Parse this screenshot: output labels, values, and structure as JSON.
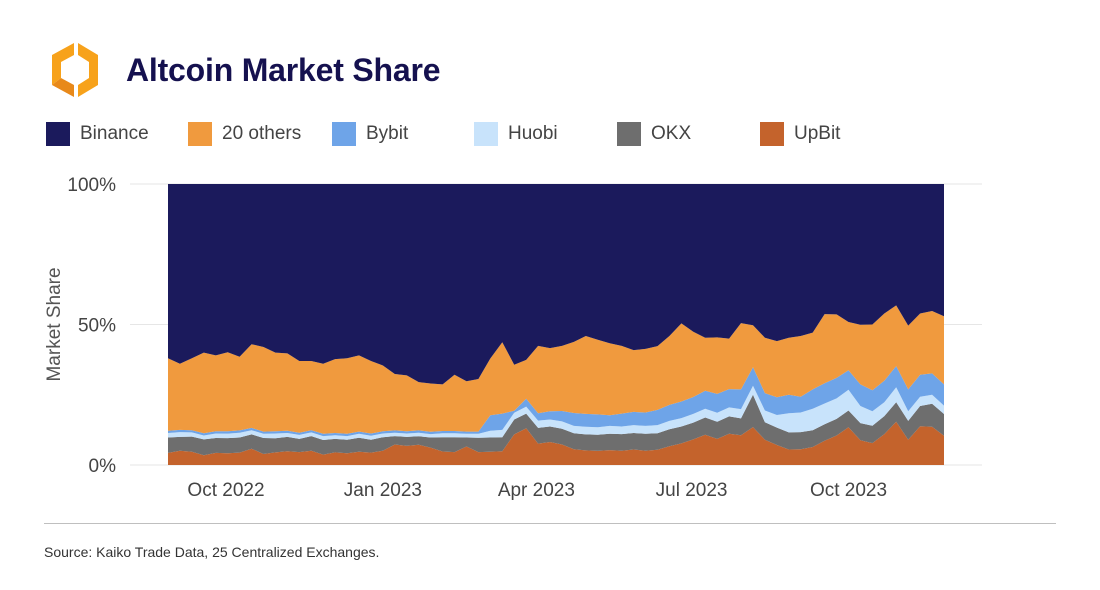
{
  "header": {
    "title": "Altcoin Market Share",
    "logo_colors": [
      "#f7a21b",
      "#e8891a"
    ]
  },
  "footer": {
    "source": "Source: Kaiko Trade Data, 25 Centralized Exchanges."
  },
  "chart_data": {
    "type": "area",
    "stacked": true,
    "normalized": true,
    "title": "Altcoin Market Share",
    "ylabel": "Market Share",
    "xlabel": "",
    "ylim": [
      0,
      100
    ],
    "y_ticks": [
      {
        "value": 0,
        "label": "0%"
      },
      {
        "value": 50,
        "label": "50%"
      },
      {
        "value": 100,
        "label": "100%"
      }
    ],
    "x_ticks": [
      {
        "value": "2022-10-01",
        "label": "Oct 2022"
      },
      {
        "value": "2023-01-01",
        "label": "Jan 2023"
      },
      {
        "value": "2023-04-01",
        "label": "Apr 2023"
      },
      {
        "value": "2023-07-01",
        "label": "Jul 2023"
      },
      {
        "value": "2023-10-01",
        "label": "Oct 2023"
      }
    ],
    "grid": "horizontal",
    "legend_position": "top",
    "x": [
      "2022-08-28",
      "2022-09-04",
      "2022-09-11",
      "2022-09-18",
      "2022-09-25",
      "2022-10-02",
      "2022-10-09",
      "2022-10-16",
      "2022-10-23",
      "2022-10-30",
      "2022-11-06",
      "2022-11-13",
      "2022-11-20",
      "2022-11-27",
      "2022-12-04",
      "2022-12-11",
      "2022-12-18",
      "2022-12-25",
      "2023-01-01",
      "2023-01-08",
      "2023-01-15",
      "2023-01-22",
      "2023-01-29",
      "2023-02-05",
      "2023-02-12",
      "2023-02-19",
      "2023-02-26",
      "2023-03-05",
      "2023-03-12",
      "2023-03-19",
      "2023-03-26",
      "2023-04-02",
      "2023-04-09",
      "2023-04-16",
      "2023-04-23",
      "2023-04-30",
      "2023-05-07",
      "2023-05-14",
      "2023-05-21",
      "2023-05-28",
      "2023-06-04",
      "2023-06-11",
      "2023-06-18",
      "2023-06-25",
      "2023-07-02",
      "2023-07-09",
      "2023-07-16",
      "2023-07-23",
      "2023-07-30",
      "2023-08-06",
      "2023-08-13",
      "2023-08-20",
      "2023-08-27",
      "2023-09-03",
      "2023-09-10",
      "2023-09-17",
      "2023-09-24",
      "2023-10-01",
      "2023-10-08",
      "2023-10-15",
      "2023-10-22",
      "2023-10-29",
      "2023-11-05",
      "2023-11-12",
      "2023-11-19",
      "2023-11-26"
    ],
    "series": [
      {
        "name": "UpBit",
        "color": "#c4632c",
        "values": [
          4.3,
          5.1,
          4.7,
          3.5,
          4.3,
          4.2,
          4.4,
          5.8,
          3.9,
          4.5,
          4.9,
          4.6,
          5.1,
          3.7,
          4.5,
          4.2,
          4.7,
          4.4,
          5.1,
          7.3,
          6.8,
          7.2,
          6.2,
          4.8,
          4.6,
          6.6,
          4.6,
          4.7,
          4.9,
          10.9,
          13.1,
          7.6,
          8.2,
          7.3,
          5.6,
          5.2,
          5.0,
          5.3,
          5.1,
          5.5,
          5.1,
          5.4,
          6.7,
          7.7,
          9.1,
          10.8,
          9.3,
          11.1,
          10.6,
          13.5,
          9.0,
          7.1,
          5.5,
          5.6,
          6.4,
          8.6,
          10.5,
          13.4,
          8.8,
          7.8,
          11.0,
          15.4,
          9.0,
          13.8,
          13.6,
          10.2
        ]
      },
      {
        "name": "OKX",
        "color": "#6e6e6e",
        "values": [
          5.5,
          4.9,
          5.4,
          5.6,
          5.3,
          5.4,
          5.4,
          5.1,
          5.7,
          5.0,
          5.1,
          4.7,
          5.2,
          5.2,
          4.8,
          4.8,
          5.0,
          4.6,
          4.8,
          3.0,
          3.2,
          3.0,
          3.6,
          5.1,
          5.3,
          3.2,
          5.1,
          5.1,
          5.0,
          5.3,
          5.2,
          5.6,
          5.5,
          5.6,
          5.7,
          5.7,
          5.8,
          5.8,
          5.9,
          5.9,
          6.0,
          5.9,
          6.0,
          6.0,
          6.0,
          6.1,
          6.1,
          6.2,
          6.0,
          11.5,
          6.2,
          6.2,
          6.1,
          6.1,
          6.0,
          5.9,
          5.9,
          6.0,
          6.1,
          6.2,
          6.4,
          6.9,
          6.7,
          7.2,
          8.2,
          7.6
        ]
      },
      {
        "name": "Huobi",
        "color": "#c8e3fb",
        "values": [
          1.6,
          1.7,
          1.5,
          1.4,
          1.6,
          1.6,
          1.7,
          1.5,
          1.5,
          1.7,
          1.4,
          1.4,
          1.3,
          1.4,
          1.3,
          1.3,
          1.4,
          1.4,
          1.3,
          1.2,
          1.2,
          1.3,
          1.2,
          1.4,
          1.4,
          1.3,
          1.4,
          2.4,
          2.6,
          2.4,
          2.5,
          2.6,
          2.5,
          2.6,
          2.6,
          2.7,
          2.6,
          2.8,
          2.7,
          2.8,
          2.8,
          2.9,
          3.0,
          3.0,
          3.1,
          3.1,
          3.2,
          3.2,
          3.3,
          3.2,
          4.2,
          4.5,
          6.8,
          7.0,
          7.6,
          7.4,
          7.3,
          7.4,
          6.1,
          5.1,
          4.9,
          5.4,
          3.4,
          3.3,
          3.2,
          2.9
        ]
      },
      {
        "name": "Bybit",
        "color": "#6ea4e8",
        "values": [
          0.8,
          0.8,
          0.8,
          0.8,
          0.8,
          0.8,
          0.8,
          0.8,
          0.8,
          0.8,
          0.8,
          0.8,
          0.8,
          0.8,
          0.8,
          0.8,
          0.8,
          0.8,
          0.8,
          0.8,
          0.8,
          0.8,
          0.8,
          0.8,
          0.8,
          0.8,
          0.8,
          5.5,
          5.8,
          0.7,
          2.8,
          2.6,
          2.9,
          3.7,
          4.6,
          4.6,
          4.6,
          3.8,
          4.6,
          4.7,
          4.8,
          5.4,
          5.7,
          5.9,
          6.0,
          6.4,
          6.7,
          6.5,
          7.0,
          6.6,
          6.2,
          6.3,
          6.6,
          5.6,
          6.9,
          7.2,
          7.3,
          6.9,
          7.7,
          7.5,
          7.7,
          7.5,
          7.8,
          7.8,
          7.6,
          7.4
        ]
      },
      {
        "name": "20 others",
        "color": "#f09a3e",
        "values": [
          25.8,
          23.5,
          25.6,
          28.7,
          27.0,
          28.2,
          26.2,
          29.8,
          30.1,
          28.0,
          27.5,
          25.5,
          24.6,
          24.9,
          26.3,
          26.9,
          27.1,
          25.8,
          23.4,
          20.1,
          19.9,
          17.2,
          17.2,
          16.6,
          20.0,
          17.9,
          18.7,
          20.2,
          25.4,
          16.4,
          13.8,
          24.0,
          22.5,
          23.2,
          25.3,
          27.7,
          26.6,
          25.6,
          24.1,
          22.0,
          22.6,
          22.7,
          24.5,
          27.8,
          23.2,
          18.9,
          20.1,
          18.0,
          23.6,
          14.9,
          19.7,
          20.0,
          20.3,
          21.6,
          20.2,
          24.6,
          22.6,
          17.2,
          21.2,
          23.4,
          23.9,
          21.6,
          22.7,
          21.8,
          22.2,
          23.8
        ]
      },
      {
        "name": "Binance",
        "color": "#1b1a5c",
        "values": [
          62.0,
          64.0,
          62.0,
          60.0,
          61.0,
          60.0,
          61.5,
          57.0,
          58.0,
          60.0,
          60.3,
          63.0,
          63.0,
          64.0,
          62.3,
          62.0,
          61.0,
          63.0,
          64.6,
          67.6,
          68.1,
          70.5,
          71.0,
          71.3,
          67.9,
          70.2,
          69.4,
          62.1,
          56.3,
          64.3,
          62.6,
          57.6,
          58.4,
          57.6,
          56.2,
          54.1,
          55.4,
          56.7,
          57.6,
          59.1,
          58.7,
          57.7,
          54.1,
          49.6,
          52.6,
          54.7,
          54.6,
          55.0,
          49.5,
          50.3,
          54.7,
          55.9,
          54.7,
          54.1,
          52.9,
          46.3,
          46.4,
          49.1,
          50.1,
          50.0,
          46.1,
          43.2,
          50.4,
          46.1,
          45.2,
          46.1
        ]
      }
    ]
  }
}
